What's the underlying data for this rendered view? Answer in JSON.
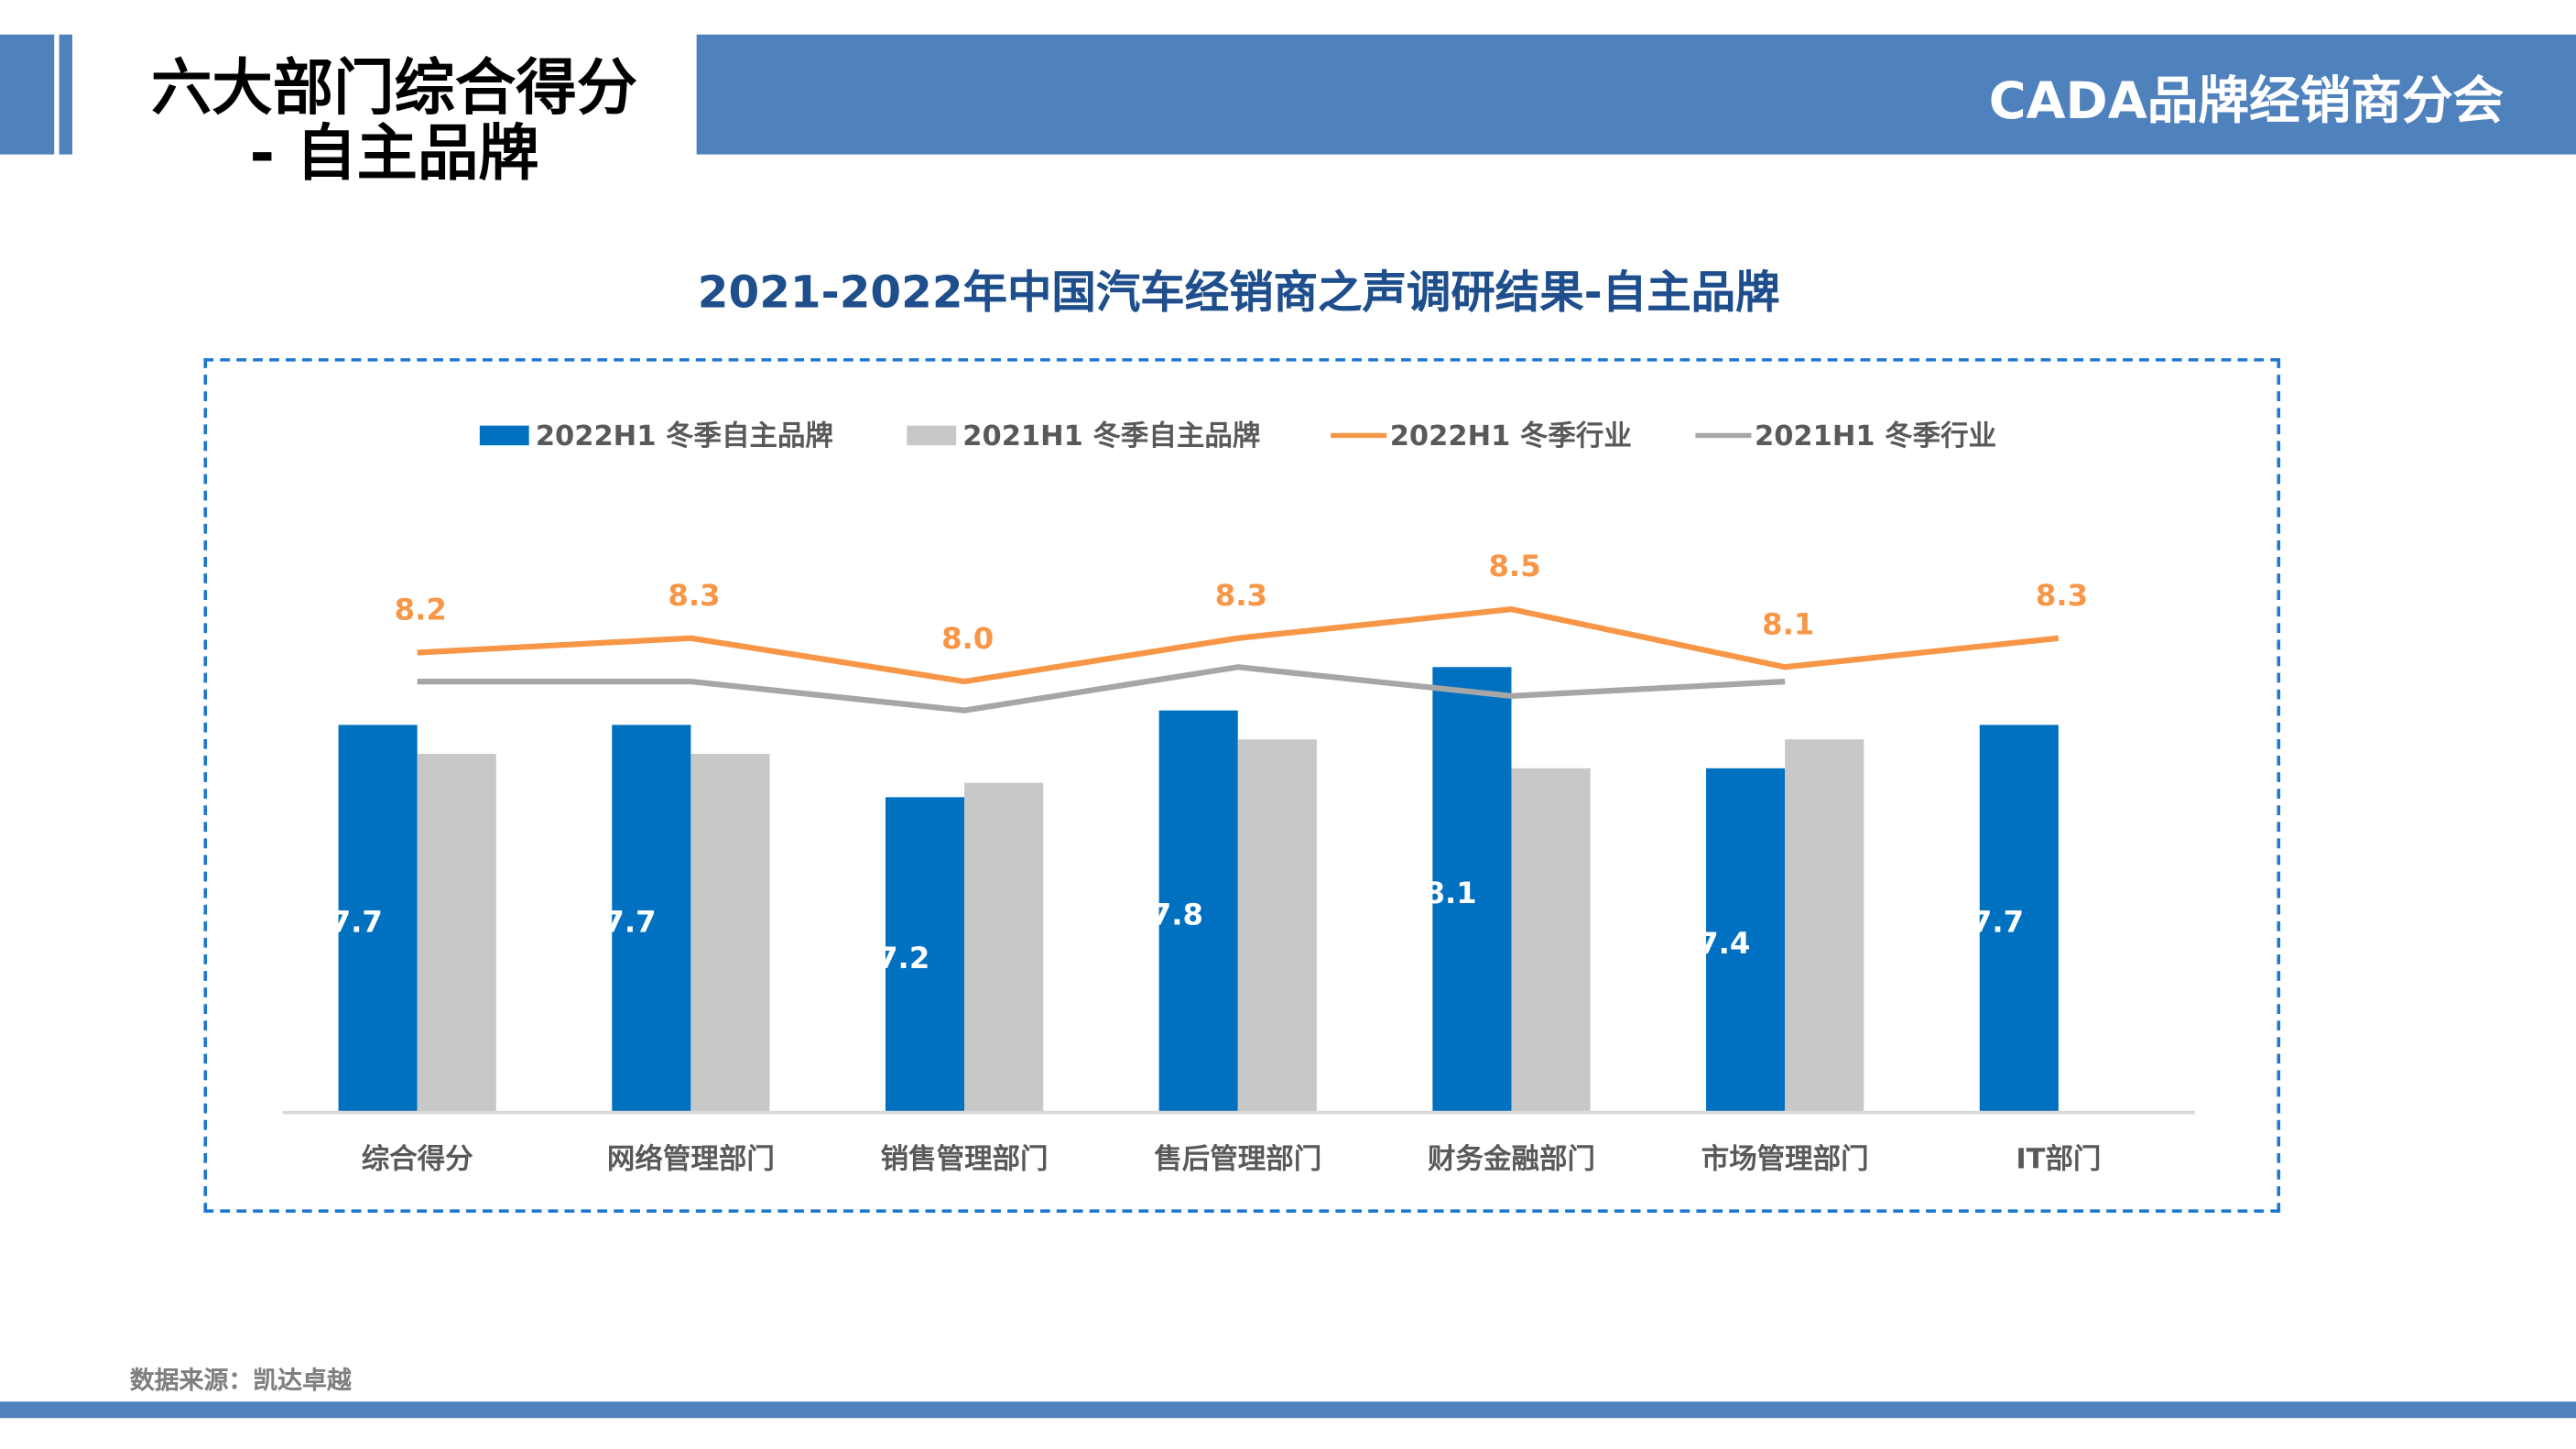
{
  "header": {
    "page_title_line1": "六大部门综合得分",
    "page_title_line2": "- 自主品牌",
    "brand": "CADA品牌经销商分会"
  },
  "footer": {
    "source": "数据来源：凯达卓越"
  },
  "colors": {
    "bar2022": "#0070c0",
    "bar2021": "#c8c8c8",
    "line2022": "#f79646",
    "line2021": "#a6a6a6",
    "header": "#4f81bd",
    "title": "#1f4e8c"
  },
  "chart_data": {
    "type": "bar+line",
    "title": "2021-2022年中国汽车经销商之声调研结果-自主品牌",
    "categories": [
      "综合得分",
      "网络管理部门",
      "销售管理部门",
      "售后管理部门",
      "财务金融部门",
      "市场管理部门",
      "IT部门"
    ],
    "legend_position": "top",
    "ylim": [
      5.0,
      9.0
    ],
    "grid": false,
    "series": [
      {
        "name": "2022H1 冬季自主品牌",
        "kind": "bar",
        "color": "#0070c0",
        "values": [
          7.7,
          7.7,
          7.2,
          7.8,
          8.1,
          7.4,
          7.7
        ],
        "labels_shown": true
      },
      {
        "name": "2021H1 冬季自主品牌",
        "kind": "bar",
        "color": "#c8c8c8",
        "values": [
          7.5,
          7.5,
          7.3,
          7.6,
          7.4,
          7.6,
          null
        ],
        "labels_shown": false
      },
      {
        "name": "2022H1 冬季行业",
        "kind": "line",
        "color": "#f79646",
        "values": [
          8.2,
          8.3,
          8.0,
          8.3,
          8.5,
          8.1,
          8.3
        ],
        "labels_shown": true
      },
      {
        "name": "2021H1 冬季行业",
        "kind": "line",
        "color": "#a6a6a6",
        "values": [
          8.0,
          8.0,
          7.8,
          8.1,
          7.9,
          8.0,
          null
        ],
        "labels_shown": false
      }
    ]
  }
}
